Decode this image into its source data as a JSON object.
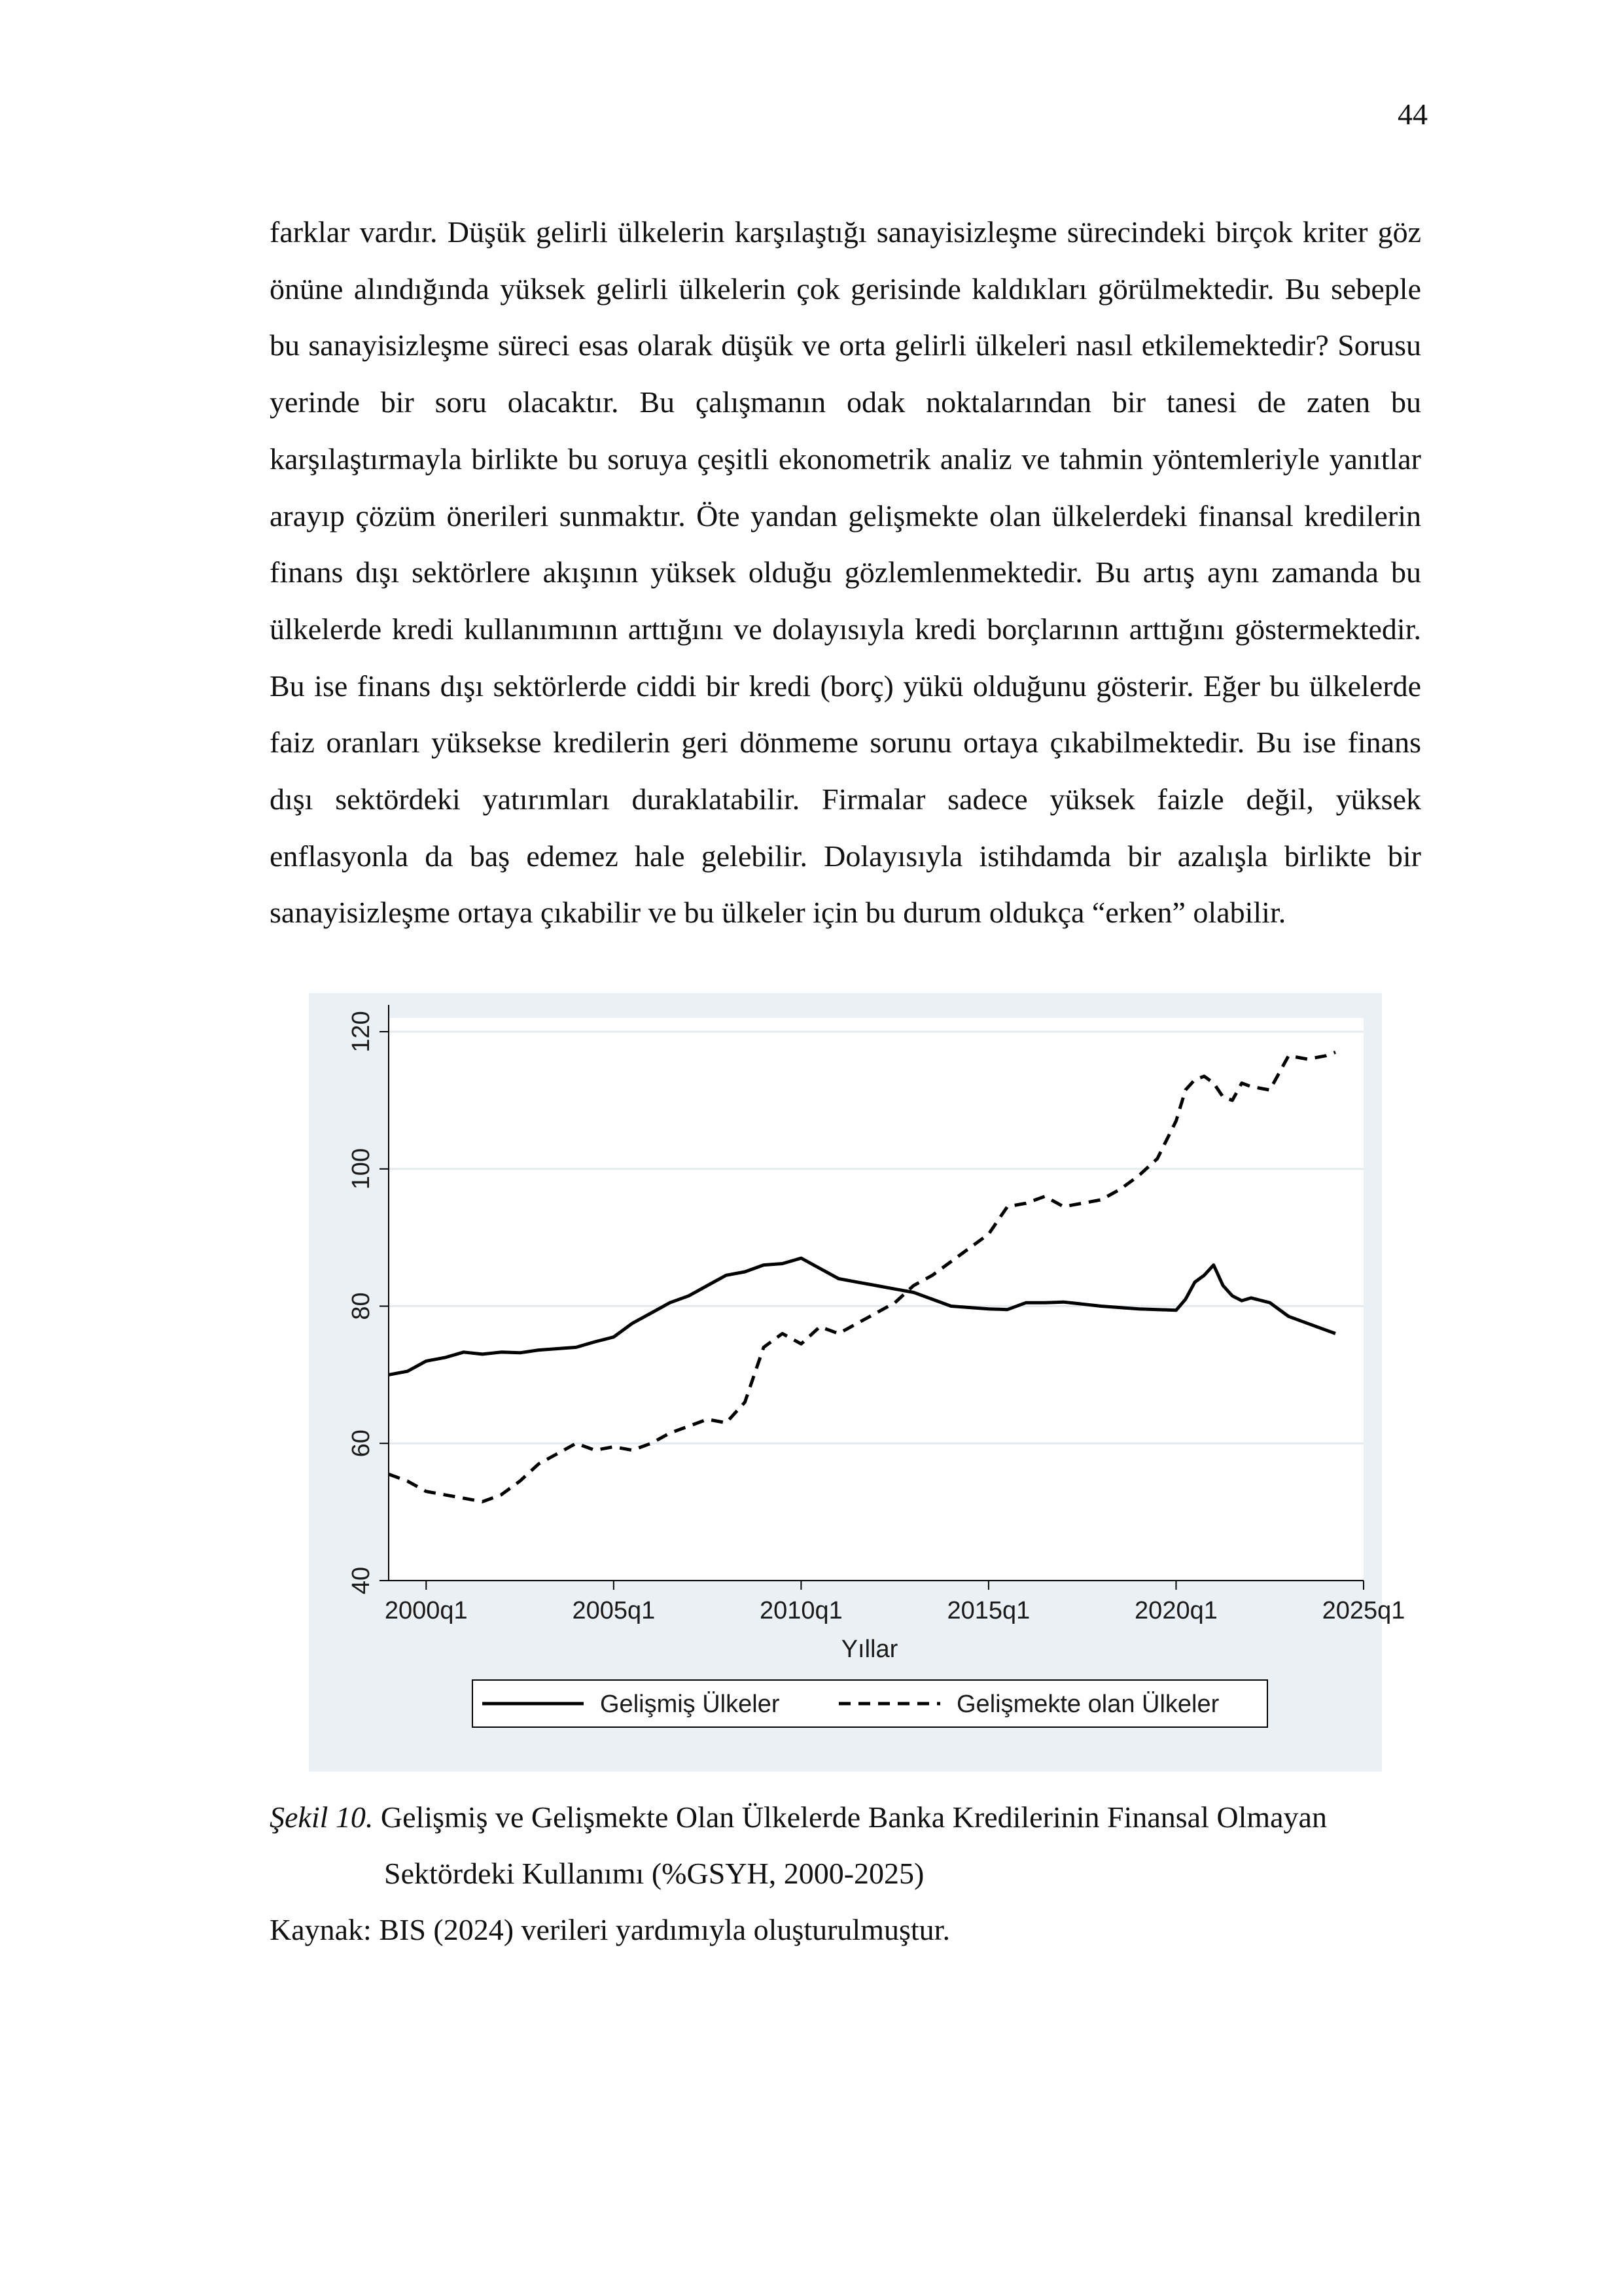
{
  "page_number": "44",
  "paragraph": "farklar vardır. Düşük gelirli ülkelerin karşılaştığı sanayisizleşme sürecindeki birçok kriter göz önüne alındığında yüksek gelirli ülkelerin çok gerisinde kaldıkları görülmektedir. Bu sebeple bu sanayisizleşme süreci esas olarak düşük ve orta gelirli ülkeleri nasıl etkilemektedir? Sorusu yerinde bir soru olacaktır. Bu çalışmanın odak noktalarından bir tanesi de zaten bu karşılaştırmayla birlikte bu soruya çeşitli ekonometrik analiz ve tahmin yöntemleriyle yanıtlar arayıp çözüm önerileri sunmaktır. Öte yandan gelişmekte olan ülkelerdeki finansal kredilerin finans dışı sektörlere akışının yüksek olduğu gözlemlenmektedir. Bu artış aynı zamanda bu ülkelerde kredi kullanımının arttığını ve dolayısıyla kredi borçlarının arttığını göstermektedir. Bu ise finans dışı sektörlerde ciddi bir kredi (borç) yükü olduğunu gösterir. Eğer bu ülkelerde faiz oranları yüksekse kredilerin geri dönmeme sorunu ortaya çıkabilmektedir. Bu ise finans dışı sektördeki yatırımları duraklatabilir. Firmalar sadece yüksek faizle değil, yüksek enflasyonla da baş edemez hale gelebilir. Dolayısıyla istihdamda bir azalışla birlikte bir sanayisizleşme ortaya çıkabilir ve bu ülkeler için bu durum oldukça “erken” olabilir.",
  "caption": {
    "label": "Şekil 10.",
    "title_line1": " Gelişmiş ve Gelişmekte Olan Ülkelerde Banka Kredilerinin Finansal Olmayan",
    "title_line2": "Sektördeki Kullanımı (%GSYH, 2000-2025)",
    "source": "Kaynak: BIS (2024) verileri yardımıyla oluşturulmuştur."
  },
  "chart_data": {
    "type": "line",
    "xlabel": "Yıllar",
    "ylabel": "",
    "x_ticks": [
      "2000q1",
      "2005q1",
      "2010q1",
      "2015q1",
      "2020q1",
      "2025q1"
    ],
    "y_ticks": [
      40,
      60,
      80,
      100,
      120
    ],
    "xlim": [
      1999,
      2025
    ],
    "ylim": [
      40,
      122
    ],
    "grid": true,
    "legend_position": "bottom",
    "series": [
      {
        "name": "Gelişmiş Ülkeler",
        "style": "solid",
        "color": "#000000",
        "x": [
          1999.0,
          1999.5,
          2000.0,
          2000.5,
          2001.0,
          2001.5,
          2002.0,
          2002.5,
          2003.0,
          2003.5,
          2004.0,
          2004.5,
          2005.0,
          2005.5,
          2006.0,
          2006.5,
          2007.0,
          2007.5,
          2008.0,
          2008.5,
          2009.0,
          2009.5,
          2010.0,
          2010.5,
          2011.0,
          2011.5,
          2012.0,
          2012.5,
          2013.0,
          2013.5,
          2014.0,
          2014.5,
          2015.0,
          2015.5,
          2016.0,
          2016.5,
          2017.0,
          2017.5,
          2018.0,
          2018.5,
          2019.0,
          2019.5,
          2020.0,
          2020.25,
          2020.5,
          2020.75,
          2021.0,
          2021.25,
          2021.5,
          2021.75,
          2022.0,
          2022.5,
          2023.0,
          2023.5,
          2024.0,
          2024.25
        ],
        "y": [
          70.0,
          70.5,
          72.0,
          72.5,
          73.3,
          73.0,
          73.3,
          73.2,
          73.6,
          73.8,
          74.0,
          74.8,
          75.5,
          77.5,
          79.0,
          80.5,
          81.5,
          83.0,
          84.5,
          85.0,
          86.0,
          86.2,
          87.0,
          85.5,
          84.0,
          83.5,
          83.0,
          82.5,
          82.0,
          81.0,
          80.0,
          79.8,
          79.6,
          79.5,
          80.5,
          80.5,
          80.6,
          80.3,
          80.0,
          79.8,
          79.6,
          79.5,
          79.4,
          81.0,
          83.5,
          84.5,
          86.0,
          83.0,
          81.5,
          80.8,
          81.2,
          80.5,
          78.5,
          77.5,
          76.5,
          76.0
        ]
      },
      {
        "name": "Gelişmekte olan Ülkeler",
        "style": "dashed",
        "color": "#000000",
        "x": [
          1999.0,
          1999.5,
          2000.0,
          2000.5,
          2001.0,
          2001.5,
          2002.0,
          2002.5,
          2003.0,
          2003.5,
          2004.0,
          2004.5,
          2005.0,
          2005.5,
          2006.0,
          2006.5,
          2007.0,
          2007.5,
          2008.0,
          2008.5,
          2009.0,
          2009.5,
          2010.0,
          2010.5,
          2011.0,
          2011.5,
          2012.0,
          2012.5,
          2013.0,
          2013.5,
          2014.0,
          2014.5,
          2015.0,
          2015.5,
          2016.0,
          2016.5,
          2017.0,
          2017.5,
          2018.0,
          2018.5,
          2019.0,
          2019.5,
          2020.0,
          2020.25,
          2020.5,
          2020.75,
          2021.0,
          2021.25,
          2021.5,
          2021.75,
          2022.0,
          2022.5,
          2023.0,
          2023.5,
          2024.0,
          2024.25
        ],
        "y": [
          55.5,
          54.5,
          53.0,
          52.5,
          52.0,
          51.5,
          52.5,
          54.5,
          57.0,
          58.5,
          60.0,
          59.0,
          59.5,
          59.0,
          60.0,
          61.5,
          62.5,
          63.5,
          63.0,
          66.0,
          74.0,
          76.0,
          74.5,
          77.0,
          76.0,
          77.5,
          79.0,
          80.5,
          83.0,
          84.5,
          86.5,
          88.5,
          90.5,
          94.5,
          95.0,
          96.0,
          94.5,
          95.0,
          95.5,
          97.0,
          99.0,
          101.5,
          107.0,
          111.5,
          113.0,
          113.5,
          112.5,
          110.5,
          110.0,
          112.5,
          112.0,
          111.5,
          116.5,
          116.0,
          116.5,
          117.0
        ]
      }
    ]
  }
}
